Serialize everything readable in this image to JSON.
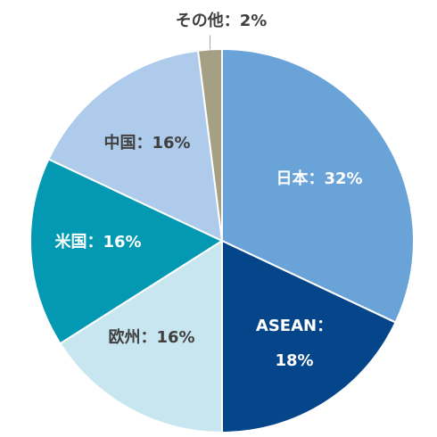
{
  "chart_data": {
    "type": "pie",
    "title": "",
    "slices": [
      {
        "label": "日本：32%",
        "value": 32,
        "color": "#6aa3d8",
        "text_color": "#ffffff"
      },
      {
        "label": "ASEAN：\n18%",
        "value": 18,
        "color": "#05468b",
        "text_color": "#ffffff"
      },
      {
        "label": "欧州：16%",
        "value": 16,
        "color": "#c8e6ef",
        "text_color": "#404040"
      },
      {
        "label": "米国：16%",
        "value": 16,
        "color": "#0399b3",
        "text_color": "#ffffff"
      },
      {
        "label": "中国：16%",
        "value": 16,
        "color": "#aecbeb",
        "text_color": "#404040"
      },
      {
        "label": "その他：2%",
        "value": 2,
        "color": "#a59f83",
        "text_color": "#404040"
      }
    ],
    "start": "12 o'clock",
    "direction": "clockwise",
    "legend": "none"
  }
}
